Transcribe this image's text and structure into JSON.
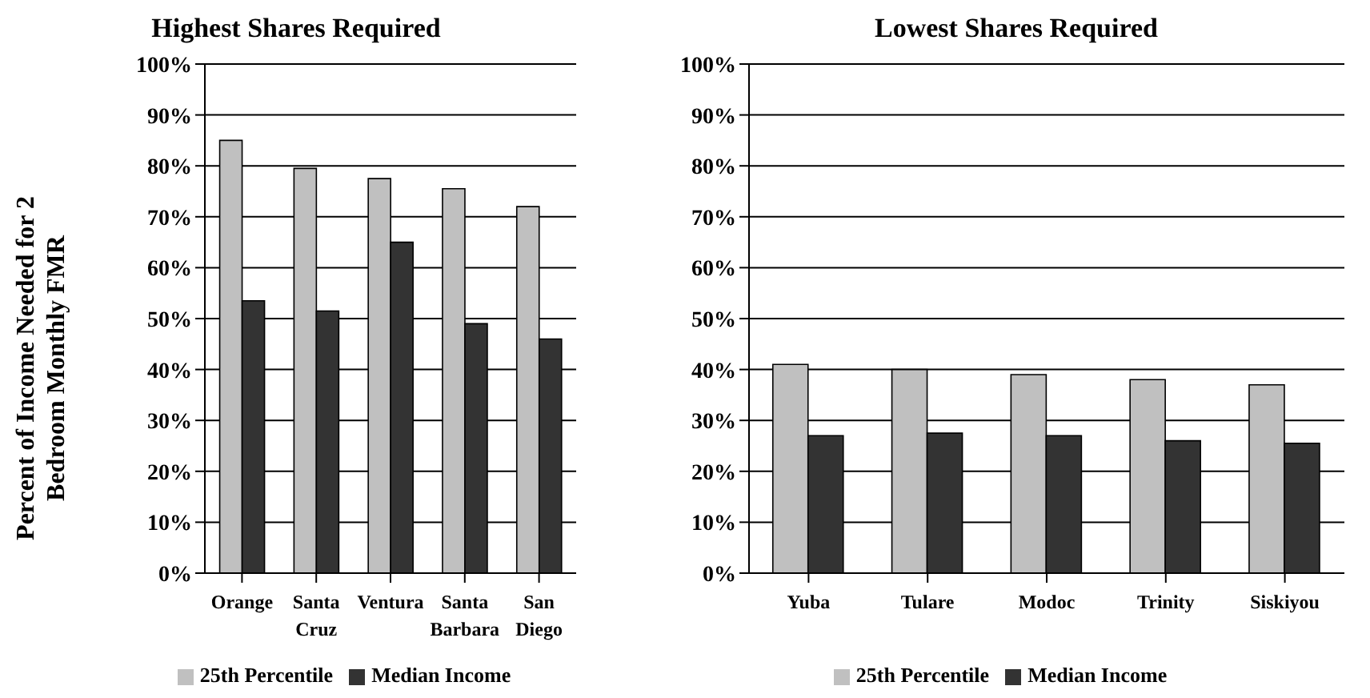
{
  "chart_data": [
    {
      "type": "bar",
      "title": "Highest Shares Required",
      "ylabel": "Percent of Income Needed for 2 Bedroom Monthly FMR",
      "categories": [
        "Orange",
        "Santa Cruz",
        "Ventura",
        "Santa Barbara",
        "San Diego"
      ],
      "series": [
        {
          "name": "25th Percentile",
          "color": "#c0c0c0",
          "values": [
            85,
            79.5,
            77.5,
            75.5,
            72
          ]
        },
        {
          "name": "Median Income",
          "color": "#333333",
          "values": [
            53.5,
            51.5,
            65,
            49,
            46
          ]
        }
      ],
      "ylim": [
        0,
        100
      ],
      "yticks": [
        {
          "value": 0,
          "label": "0%"
        },
        {
          "value": 10,
          "label": "10%"
        },
        {
          "value": 20,
          "label": "20%"
        },
        {
          "value": 30,
          "label": "30%"
        },
        {
          "value": 40,
          "label": "40%"
        },
        {
          "value": 50,
          "label": "50%"
        },
        {
          "value": 60,
          "label": "60%"
        },
        {
          "value": 70,
          "label": "70%"
        },
        {
          "value": 80,
          "label": "80%"
        },
        {
          "value": 90,
          "label": "90%"
        },
        {
          "value": 100,
          "label": "100%"
        }
      ],
      "grid": "y",
      "legend": "bottom"
    },
    {
      "type": "bar",
      "title": "Lowest Shares Required",
      "categories": [
        "Yuba",
        "Tulare",
        "Modoc",
        "Trinity",
        "Siskiyou"
      ],
      "series": [
        {
          "name": "25th Percentile",
          "color": "#c0c0c0",
          "values": [
            41,
            40,
            39,
            38,
            37
          ]
        },
        {
          "name": "Median Income",
          "color": "#333333",
          "values": [
            27,
            27.5,
            27,
            26,
            25.5
          ]
        }
      ],
      "ylim": [
        0,
        100
      ],
      "yticks": [
        {
          "value": 0,
          "label": "0%"
        },
        {
          "value": 10,
          "label": "10%"
        },
        {
          "value": 20,
          "label": "20%"
        },
        {
          "value": 30,
          "label": "30%"
        },
        {
          "value": 40,
          "label": "40%"
        },
        {
          "value": 50,
          "label": "50%"
        },
        {
          "value": 60,
          "label": "60%"
        },
        {
          "value": 70,
          "label": "70%"
        },
        {
          "value": 80,
          "label": "80%"
        },
        {
          "value": 90,
          "label": "90%"
        },
        {
          "value": 100,
          "label": "100%"
        }
      ],
      "grid": "y",
      "legend": "bottom"
    }
  ]
}
